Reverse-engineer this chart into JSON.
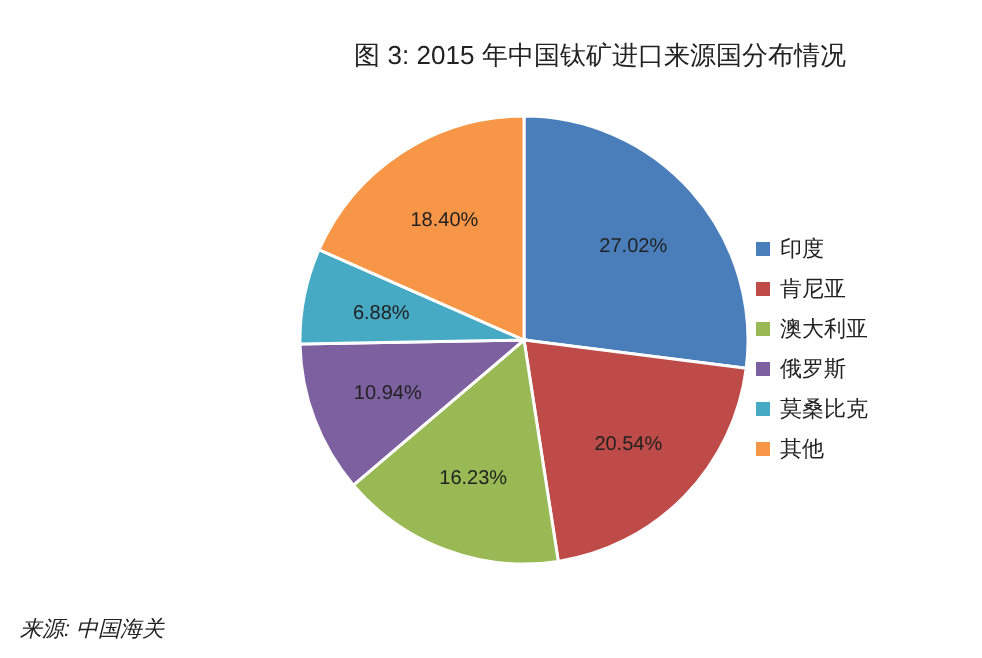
{
  "chart_data": {
    "type": "pie",
    "title": "图 3: 2015 年中国钛矿进口来源国分布情况",
    "categories": [
      "印度",
      "肯尼亚",
      "澳大利亚",
      "俄罗斯",
      "莫桑比克",
      "其他"
    ],
    "values": [
      27.02,
      20.54,
      16.23,
      10.94,
      6.88,
      18.4
    ],
    "colors": [
      "#4a7ebb",
      "#be4b48",
      "#98b954",
      "#7d60a0",
      "#46aac5",
      "#f79646"
    ],
    "value_labels": [
      "27.02%",
      "20.54%",
      "16.23%",
      "10.94%",
      "6.88%",
      "18.40%"
    ],
    "legend": "right",
    "annotations": [
      "来源: 中国海关"
    ]
  }
}
